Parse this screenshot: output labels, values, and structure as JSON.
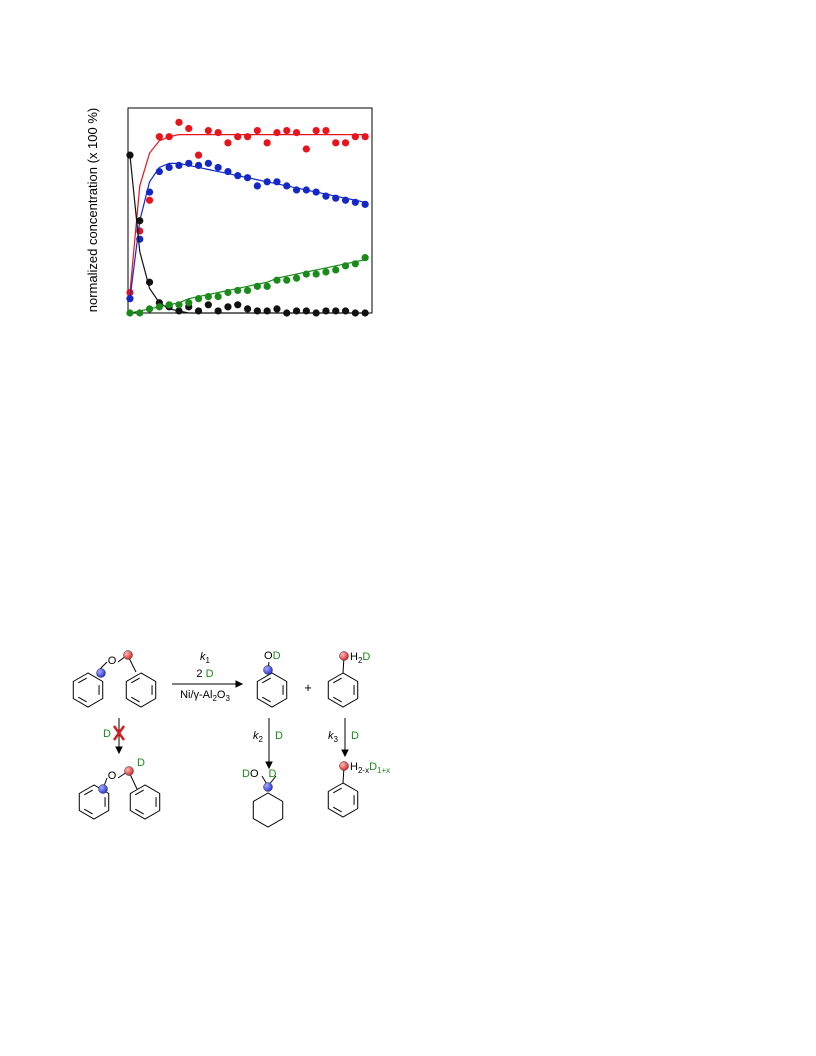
{
  "chart_data": {
    "type": "scatter",
    "y_label": "normalized concentration (x 100 %)",
    "x": [
      0,
      1,
      2,
      3,
      4,
      5,
      6,
      7,
      8,
      9,
      10,
      11,
      12,
      13,
      14,
      15,
      16,
      17,
      18,
      19,
      20,
      21,
      22,
      23,
      24
    ],
    "xlim": [
      -0.2,
      24.7
    ],
    "ylim": [
      0,
      1.0
    ],
    "series": [
      {
        "color": "#e8141c",
        "values": [
          0.1,
          0.4,
          0.55,
          0.86,
          0.86,
          0.93,
          0.9,
          0.77,
          0.89,
          0.88,
          0.83,
          0.86,
          0.86,
          0.89,
          0.83,
          0.88,
          0.89,
          0.88,
          0.8,
          0.89,
          0.89,
          0.83,
          0.83,
          0.86,
          0.86
        ],
        "fit": [
          0.1,
          0.62,
          0.78,
          0.84,
          0.86,
          0.87,
          0.87,
          0.87,
          0.87,
          0.87,
          0.87,
          0.87,
          0.87,
          0.87,
          0.87,
          0.87,
          0.87,
          0.87,
          0.87,
          0.87,
          0.87,
          0.87,
          0.87,
          0.87,
          0.87
        ]
      },
      {
        "color": "#1428c8",
        "values": [
          0.07,
          0.36,
          0.59,
          0.69,
          0.71,
          0.72,
          0.73,
          0.72,
          0.73,
          0.71,
          0.69,
          0.67,
          0.66,
          0.62,
          0.64,
          0.64,
          0.62,
          0.6,
          0.6,
          0.59,
          0.57,
          0.56,
          0.55,
          0.54,
          0.53
        ],
        "fit": [
          0.07,
          0.45,
          0.64,
          0.71,
          0.73,
          0.73,
          0.72,
          0.71,
          0.7,
          0.69,
          0.68,
          0.67,
          0.66,
          0.65,
          0.64,
          0.63,
          0.62,
          0.61,
          0.6,
          0.59,
          0.58,
          0.57,
          0.56,
          0.55,
          0.54
        ]
      },
      {
        "color": "#111111",
        "values": [
          0.77,
          0.45,
          0.15,
          0.05,
          0.03,
          0.01,
          0.03,
          0.01,
          0.04,
          0.01,
          0.03,
          0.04,
          0.02,
          0.01,
          0.01,
          0.02,
          0.0,
          0.01,
          0.01,
          0.0,
          0.01,
          0.01,
          0.01,
          0.0,
          0.0
        ],
        "fit": [
          0.77,
          0.3,
          0.12,
          0.05,
          0.02,
          0.01,
          0.0,
          0.0,
          0.0,
          0.0,
          0.0,
          0.0,
          0.0,
          0.0,
          0.0,
          0.0,
          0.0,
          0.0,
          0.0,
          0.0,
          0.0,
          0.0,
          0.0,
          0.0,
          0.0
        ]
      },
      {
        "color": "#1a8a1a",
        "values": [
          0.0,
          0.0,
          0.02,
          0.03,
          0.04,
          0.04,
          0.05,
          0.07,
          0.08,
          0.08,
          0.1,
          0.11,
          0.11,
          0.13,
          0.13,
          0.16,
          0.16,
          0.17,
          0.19,
          0.19,
          0.2,
          0.21,
          0.23,
          0.24,
          0.27
        ],
        "fit": [
          0.0,
          0.01,
          0.02,
          0.03,
          0.04,
          0.05,
          0.07,
          0.08,
          0.09,
          0.1,
          0.11,
          0.12,
          0.13,
          0.14,
          0.15,
          0.17,
          0.18,
          0.19,
          0.2,
          0.21,
          0.22,
          0.23,
          0.24,
          0.25,
          0.26
        ]
      }
    ]
  },
  "scheme": {
    "ether_o": "O",
    "k1": [
      "k",
      "1"
    ],
    "reagent": [
      "2",
      "D"
    ],
    "catalyst": [
      "Ni/γ-Al",
      "2",
      "O",
      "3"
    ],
    "phenol": [
      "O",
      "D"
    ],
    "plus": "+",
    "toluene": [
      "H",
      "2",
      "D"
    ],
    "blocked_d": "D",
    "k2": [
      "k",
      "2"
    ],
    "k2_d": "D",
    "k3": [
      "k",
      "3"
    ],
    "k3_d": "D",
    "ether_d_o": "O",
    "ether_d_d": "D",
    "cyclohexanol": [
      "D",
      "O",
      "D"
    ],
    "toluene_d": [
      "H",
      "2-x",
      "D",
      "1+x"
    ]
  }
}
